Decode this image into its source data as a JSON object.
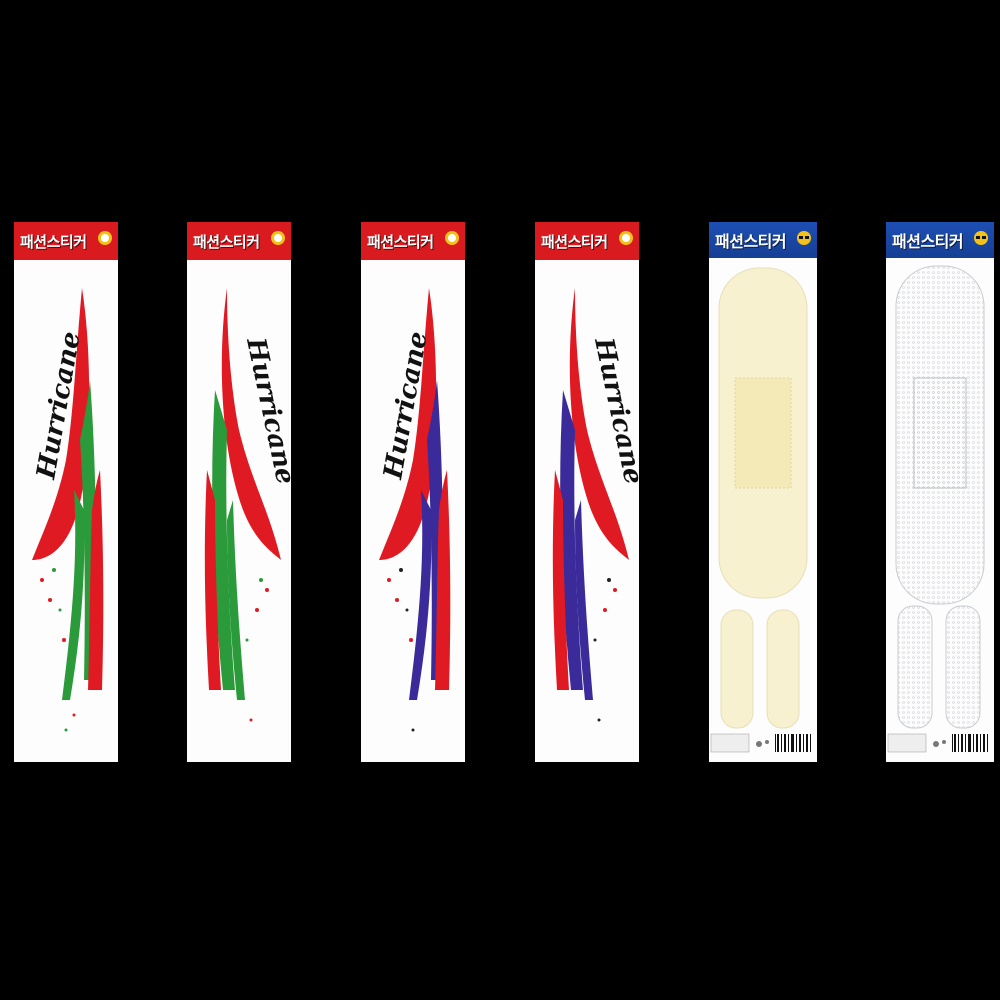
{
  "cards": [
    {
      "brand_text": "패션스티커",
      "script_text": "Hurricane",
      "header": "red",
      "accent": "#2a9a3a"
    },
    {
      "brand_text": "패션스티커",
      "script_text": "Hurricane",
      "header": "red",
      "accent": "#2a9a3a"
    },
    {
      "brand_text": "패션스티커",
      "script_text": "Hurricane",
      "header": "red",
      "accent": "#3a2a9a"
    },
    {
      "brand_text": "패션스티커",
      "script_text": "Hurricane",
      "header": "red",
      "accent": "#3a2a9a"
    },
    {
      "brand_text": "패션스티커",
      "header": "blue",
      "style": "bandage-cream"
    },
    {
      "brand_text": "패션스티커",
      "header": "blue",
      "style": "bandage-mesh"
    }
  ],
  "colors": {
    "background": "#000000",
    "red": "#e01a22",
    "green": "#2a9a3a",
    "navy": "#3a2a9a",
    "cream": "#f7f1cf"
  }
}
